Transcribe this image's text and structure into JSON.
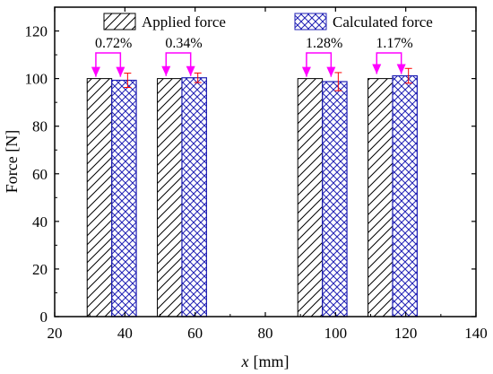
{
  "chart_data": {
    "type": "bar",
    "xlabel": "x",
    "xlabel_unit": "[mm]",
    "ylabel": "Force [N]",
    "xlim": [
      20,
      140
    ],
    "ylim": [
      0,
      130
    ],
    "xticks": [
      20,
      40,
      60,
      80,
      100,
      120,
      140
    ],
    "yticks": [
      0,
      20,
      40,
      60,
      80,
      100,
      120
    ],
    "x": [
      40,
      60,
      100,
      120
    ],
    "series": [
      {
        "name": "Applied force",
        "values": [
          100,
          100,
          100,
          100
        ],
        "pattern": "diagonal-hatch",
        "color": "#000000"
      },
      {
        "name": "Calculated force",
        "values": [
          99.28,
          100.34,
          98.72,
          101.17
        ],
        "errors": [
          3.0,
          2.0,
          3.8,
          3.1
        ],
        "pattern": "crosshatch",
        "color": "#1f1fb4"
      }
    ],
    "annotations": [
      "0.72%",
      "0.34%",
      "1.28%",
      "1.17%"
    ],
    "legend_position": "top",
    "colors": {
      "arrow": "#ff00ff",
      "error_bar": "#ff0000",
      "calculated": "#1f1fb4",
      "applied": "#000000"
    }
  }
}
